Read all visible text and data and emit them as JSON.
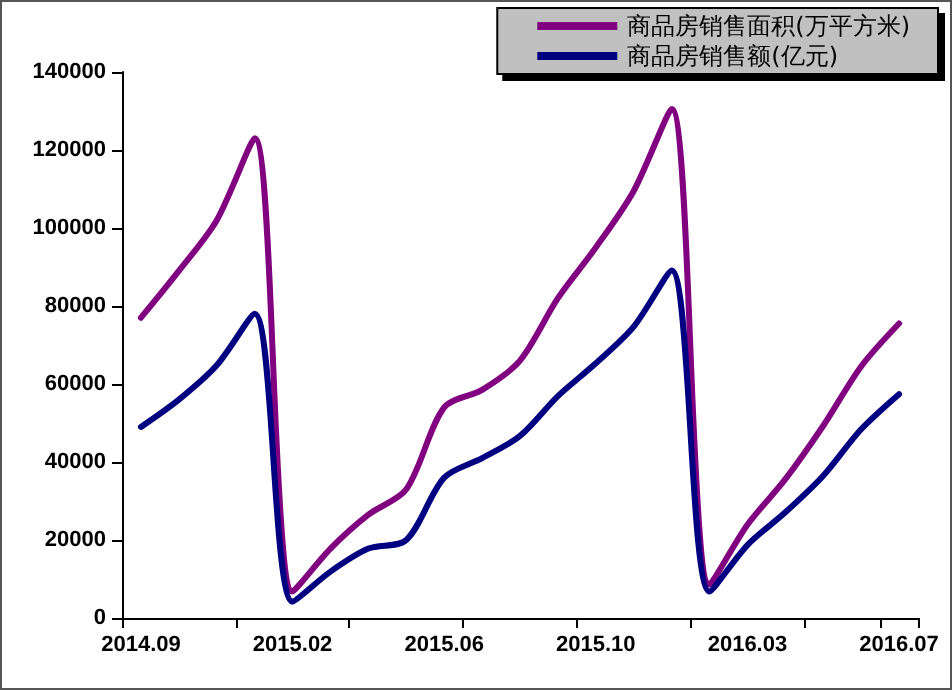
{
  "chart_data": {
    "type": "line",
    "categories": [
      "2014.09",
      null,
      null,
      null,
      "2015.02",
      null,
      null,
      null,
      "2015.06",
      null,
      null,
      null,
      "2015.10",
      null,
      null,
      null,
      "2016.03",
      null,
      null,
      null,
      "2016.07"
    ],
    "series": [
      {
        "name": "商品房销售面积(万平方米)",
        "color": "#800080",
        "values": [
          77000,
          89000,
          102000,
          123000,
          6800,
          17800,
          26500,
          33000,
          54000,
          58500,
          66000,
          82000,
          95000,
          109500,
          130500,
          8600,
          23900,
          35600,
          49300,
          64500,
          75500
        ]
      },
      {
        "name": "商品房销售额(亿元)",
        "color": "#000080",
        "values": [
          49000,
          56000,
          64800,
          78000,
          4200,
          11900,
          17800,
          20000,
          36000,
          41000,
          46700,
          56900,
          65300,
          74700,
          89100,
          6800,
          18700,
          27100,
          36500,
          48400,
          57400
        ]
      }
    ],
    "ylim": [
      0,
      140000
    ],
    "yticks": [
      0,
      20000,
      40000,
      60000,
      80000,
      100000,
      120000,
      140000
    ],
    "grid": false,
    "legend": "top right",
    "marker": "none",
    "line_style": "solid"
  }
}
